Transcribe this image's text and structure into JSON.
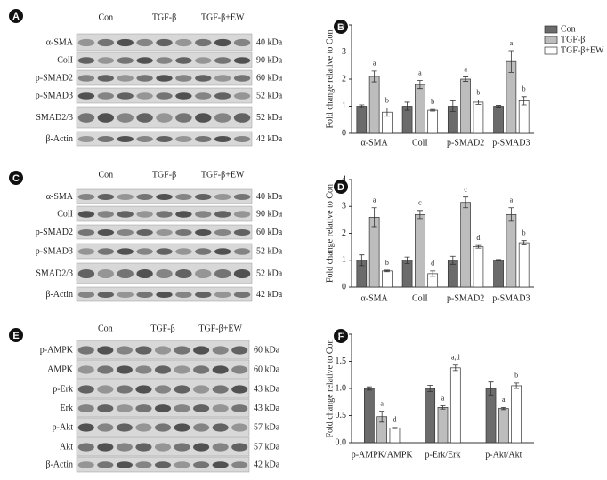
{
  "blots": [
    {
      "panel": "A",
      "groups": [
        "Con",
        "TGF-β",
        "TGF-β+EW"
      ],
      "rows": [
        {
          "name": "α-SMA",
          "size": "40 kDa"
        },
        {
          "name": "ColI",
          "size": "90 kDa"
        },
        {
          "name": "p-SMAD2",
          "size": "60 kDa"
        },
        {
          "name": "p-SMAD3",
          "size": "52 kDa"
        },
        {
          "name": "SMAD2/3",
          "size": "52 kDa"
        },
        {
          "name": "β-Actin",
          "size": "42 kDa"
        }
      ]
    },
    {
      "panel": "C",
      "groups": [
        "Con",
        "TGF-β",
        "TGF-β+EW"
      ],
      "rows": [
        {
          "name": "α-SMA",
          "size": "40 kDa"
        },
        {
          "name": "ColI",
          "size": "90 kDa"
        },
        {
          "name": "p-SMAD2",
          "size": "60 kDa"
        },
        {
          "name": "p-SMAD3",
          "size": "52 kDa"
        },
        {
          "name": "SMAD2/3",
          "size": "52 kDa"
        },
        {
          "name": "β-Actin",
          "size": "42 kDa"
        }
      ]
    },
    {
      "panel": "E",
      "groups": [
        "Con",
        "TGF-β",
        "TGF-β+EW"
      ],
      "rows": [
        {
          "name": "p-AMPK",
          "size": "60 kDa"
        },
        {
          "name": "AMPK",
          "size": "60 kDa"
        },
        {
          "name": "p-Erk",
          "size": "43 kDa"
        },
        {
          "name": "Erk",
          "size": "43 kDa"
        },
        {
          "name": "p-Akt",
          "size": "57 kDa"
        },
        {
          "name": "Akt",
          "size": "57 kDa"
        },
        {
          "name": "β-Actin",
          "size": "42 kDa"
        }
      ]
    }
  ],
  "chart_data": [
    {
      "type": "bar",
      "panel": "B",
      "y_label": "Fold change relative to Con",
      "legend": "right",
      "categories": [
        "α-SMA",
        "ColI",
        "p-SMAD2",
        "p-SMAD3"
      ],
      "ylim": [
        0,
        4
      ],
      "yticks": [
        0,
        1,
        2,
        3,
        4
      ],
      "series": [
        {
          "name": "Con",
          "color": "#6b6b6b",
          "values": [
            1,
            1,
            1,
            1
          ],
          "errors": [
            0.05,
            0.15,
            0.2,
            0.03
          ]
        },
        {
          "name": "TGF-β",
          "color": "#bdbdbd",
          "values": [
            2.1,
            1.8,
            2.0,
            2.65
          ],
          "errors": [
            0.2,
            0.15,
            0.08,
            0.4
          ],
          "annotations": [
            "a",
            "a",
            "a",
            "a"
          ]
        },
        {
          "name": "TGF-β+EW",
          "color": "#ffffff",
          "values": [
            0.78,
            0.85,
            1.15,
            1.2
          ],
          "errors": [
            0.15,
            0.03,
            0.08,
            0.15
          ],
          "annotations": [
            "b",
            "b",
            "b",
            "b"
          ]
        }
      ]
    },
    {
      "type": "bar",
      "panel": "D",
      "y_label": "Fold change relative to Con",
      "categories": [
        "α-SMA",
        "ColI",
        "p-SMAD2",
        "p-SMAD3"
      ],
      "ylim": [
        0,
        4
      ],
      "yticks": [
        0,
        1,
        2,
        3,
        4
      ],
      "series": [
        {
          "name": "Con",
          "color": "#6b6b6b",
          "values": [
            1,
            1,
            1,
            1
          ],
          "errors": [
            0.2,
            0.12,
            0.15,
            0.03
          ]
        },
        {
          "name": "TGF-β",
          "color": "#bdbdbd",
          "values": [
            2.6,
            2.7,
            3.15,
            2.7
          ],
          "errors": [
            0.35,
            0.15,
            0.2,
            0.25
          ],
          "annotations": [
            "a",
            "c",
            "c",
            "a"
          ]
        },
        {
          "name": "TGF-β+EW",
          "color": "#ffffff",
          "values": [
            0.6,
            0.5,
            1.5,
            1.65
          ],
          "errors": [
            0.03,
            0.1,
            0.05,
            0.08
          ],
          "annotations": [
            "b",
            "d",
            "d",
            "b"
          ]
        }
      ]
    },
    {
      "type": "bar",
      "panel": "F",
      "y_label": "Fold change relative to Con",
      "categories": [
        "p-AMPK/AMPK",
        "p-Erk/Erk",
        "p-Akt/Akt"
      ],
      "ylim": [
        0,
        2
      ],
      "yticks": [
        {
          "value": 0,
          "label": "0.0"
        },
        0.5,
        {
          "value": 1,
          "label": "1.0"
        },
        1.5,
        {
          "value": 2,
          "label": "2.0"
        }
      ],
      "series": [
        {
          "name": "Con",
          "color": "#6b6b6b",
          "values": [
            1,
            1,
            1
          ],
          "errors": [
            0.03,
            0.06,
            0.12
          ]
        },
        {
          "name": "TGF-β",
          "color": "#bdbdbd",
          "values": [
            0.48,
            0.65,
            0.63
          ],
          "errors": [
            0.1,
            0.03,
            0.02
          ],
          "annotations": [
            "a",
            "a",
            "a"
          ]
        },
        {
          "name": "TGF-β+EW",
          "color": "#ffffff",
          "values": [
            0.27,
            1.38,
            1.05
          ],
          "errors": [
            0.01,
            0.05,
            0.05
          ],
          "annotations": [
            "d",
            "a,d",
            "b"
          ]
        }
      ]
    }
  ]
}
